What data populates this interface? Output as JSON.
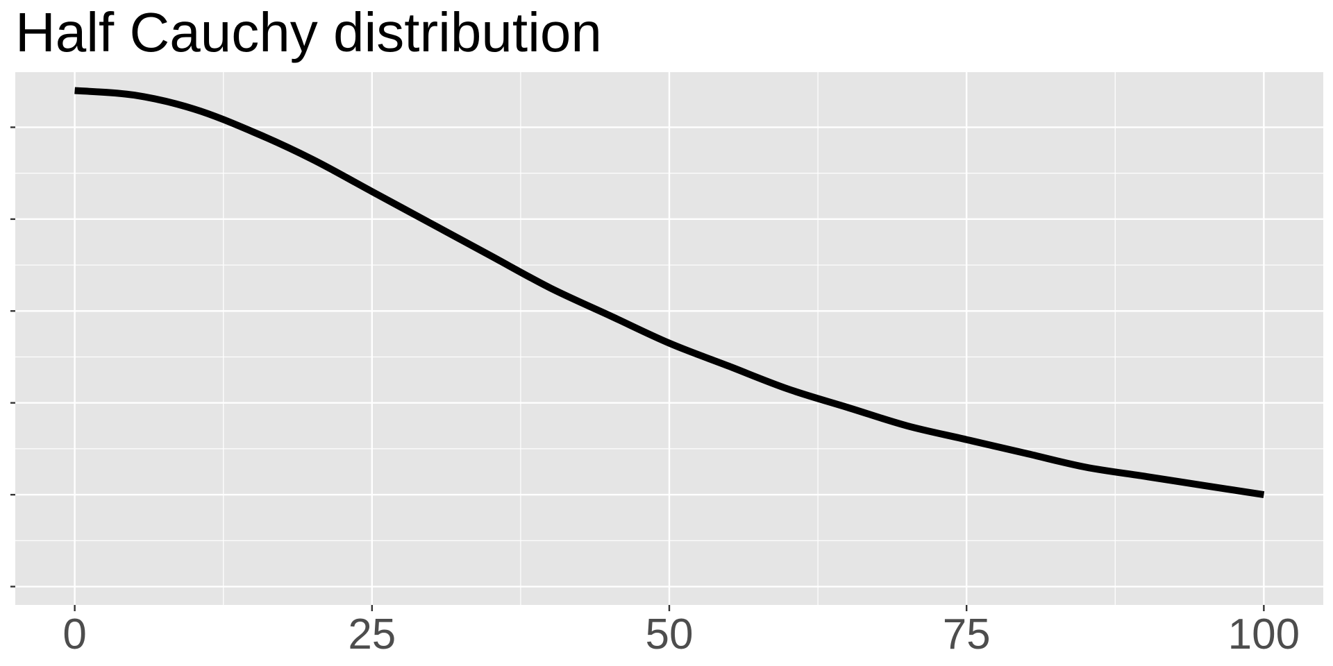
{
  "chart_data": {
    "type": "line",
    "title": "Half Cauchy distribution",
    "xlabel": "",
    "ylabel": "",
    "xlim": [
      -5,
      105
    ],
    "ylim": [
      0.0016,
      0.0132
    ],
    "x_ticks": [
      0,
      25,
      50,
      75,
      100
    ],
    "x_tick_labels": [
      "0",
      "25",
      "50",
      "75",
      "100"
    ],
    "y_ticks_unlabeled": [
      0.002,
      0.004,
      0.006,
      0.008,
      0.01,
      0.012
    ],
    "grid": true,
    "panel_background": "#e5e5e5",
    "grid_color": "#ffffff",
    "series": [
      {
        "color": "#000000",
        "x": [
          0,
          5,
          10,
          15,
          20,
          25,
          30,
          35,
          40,
          45,
          50,
          55,
          60,
          65,
          70,
          75,
          80,
          85,
          90,
          95,
          100
        ],
        "y": [
          0.0128,
          0.0127,
          0.0124,
          0.0119,
          0.0113,
          0.0106,
          0.0099,
          0.0092,
          0.0085,
          0.0079,
          0.0073,
          0.0068,
          0.0063,
          0.0059,
          0.0055,
          0.0052,
          0.0049,
          0.0046,
          0.0044,
          0.0042,
          0.004
        ]
      }
    ]
  }
}
